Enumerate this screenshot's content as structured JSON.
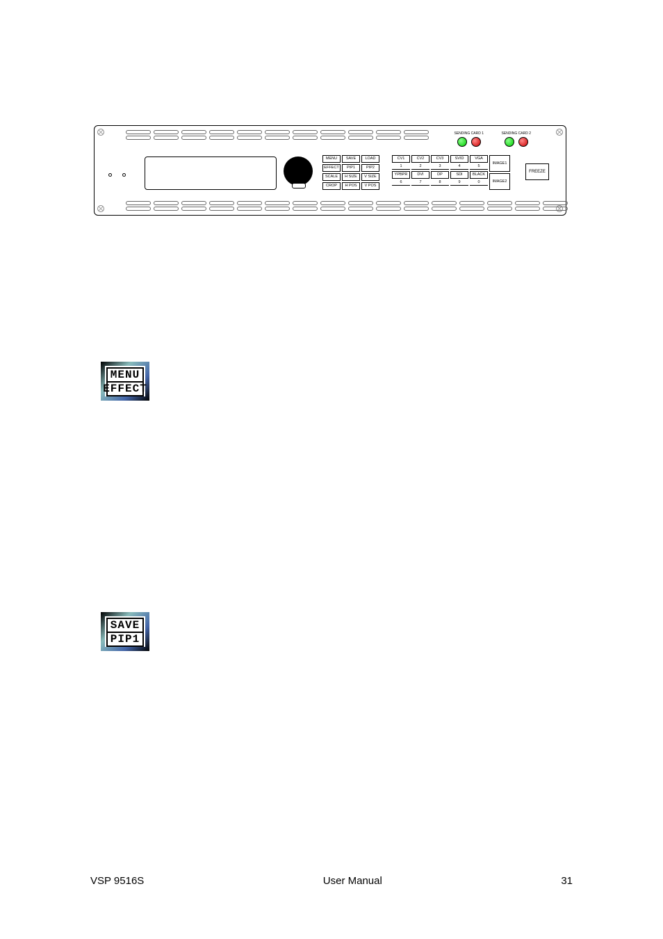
{
  "footer": {
    "model": "VSP 9516S",
    "title": "User Manual",
    "page": "31"
  },
  "device": {
    "sending_card_1_label": "SENDING CARD 1",
    "sending_card_2_label": "SENDING CARD 2",
    "led_colors": {
      "green": "#00cc00",
      "red": "#cc0000"
    },
    "freeze": "FREEZE",
    "left_grid": {
      "col1": [
        "MENU",
        "EFFECT",
        "SCALE",
        "CROP"
      ],
      "col2": [
        "SAVE",
        "PIP1",
        "H SIZE",
        "H POS"
      ],
      "col3": [
        "LOAD",
        "PIP2",
        "V SIZE",
        "V POS"
      ]
    },
    "right_grid": {
      "row1_btns": [
        "CV1",
        "CV2",
        "CV3",
        "SVID",
        "VGA"
      ],
      "row1_nums": [
        "1",
        "2",
        "3",
        "4",
        "5"
      ],
      "row2_btns": [
        "YPBPR",
        "DVI",
        "DP",
        "SDI",
        "BLACK"
      ],
      "row2_nums": [
        "6",
        "7",
        "8",
        "9",
        "0"
      ],
      "tall": [
        "IMAGE1",
        "IMAGE2"
      ]
    }
  },
  "keys": {
    "menu_effect": {
      "top": "MENU",
      "bottom": "EFFECT"
    },
    "save_pip1": {
      "top": "SAVE",
      "bottom": "PIP1"
    }
  }
}
